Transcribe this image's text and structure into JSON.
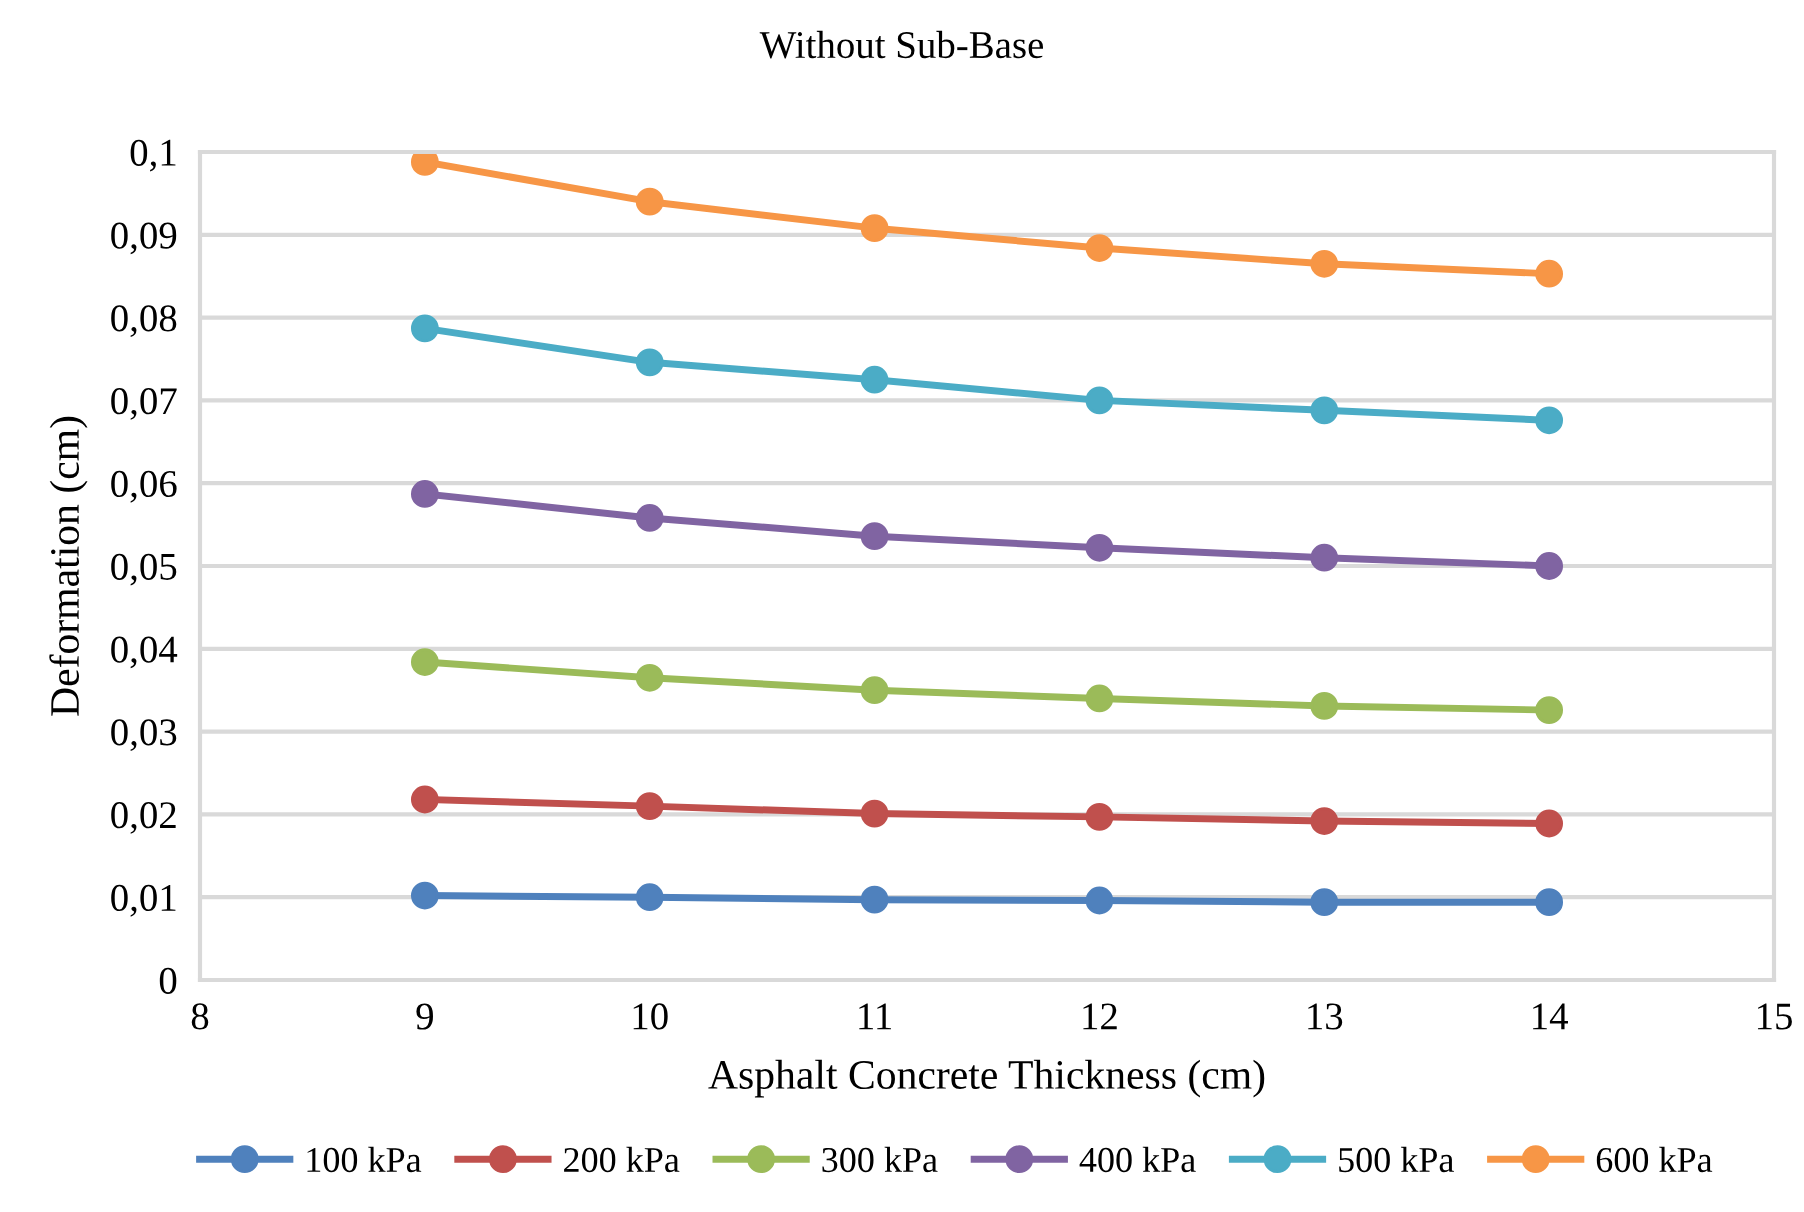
{
  "chart_data": {
    "type": "line",
    "title": "Without Sub-Base",
    "xlabel": "Asphalt Concrete Thickness (cm)",
    "ylabel": "Deformation (cm)",
    "x": [
      9,
      10,
      11,
      12,
      13,
      14
    ],
    "series": [
      {
        "name": "100 kPa",
        "color": "#4f81bd",
        "values": [
          0.0102,
          0.01,
          0.0097,
          0.0096,
          0.0094,
          0.0094
        ]
      },
      {
        "name": "200 kPa",
        "color": "#c0504d",
        "values": [
          0.0218,
          0.021,
          0.0201,
          0.0197,
          0.0192,
          0.0189
        ]
      },
      {
        "name": "300 kPa",
        "color": "#9bbb59",
        "values": [
          0.0384,
          0.0365,
          0.035,
          0.034,
          0.0331,
          0.0326
        ]
      },
      {
        "name": "400 kPa",
        "color": "#8064a2",
        "values": [
          0.0587,
          0.0558,
          0.0536,
          0.0522,
          0.051,
          0.05
        ]
      },
      {
        "name": "500 kPa",
        "color": "#4bacc6",
        "values": [
          0.0787,
          0.0746,
          0.0725,
          0.07,
          0.0688,
          0.0676
        ]
      },
      {
        "name": "600 kPa",
        "color": "#f79646",
        "values": [
          0.0988,
          0.094,
          0.0908,
          0.0884,
          0.0865,
          0.0853
        ]
      }
    ],
    "xlim": [
      8,
      15
    ],
    "xticks": [
      8,
      9,
      10,
      11,
      12,
      13,
      14,
      15
    ],
    "ylim": [
      0,
      0.1
    ],
    "yticks": [
      {
        "value": 0,
        "label": "0"
      },
      {
        "value": 0.01,
        "label": "0,01"
      },
      {
        "value": 0.02,
        "label": "0,02"
      },
      {
        "value": 0.03,
        "label": "0,03"
      },
      {
        "value": 0.04,
        "label": "0,04"
      },
      {
        "value": 0.05,
        "label": "0,05"
      },
      {
        "value": 0.06,
        "label": "0,06"
      },
      {
        "value": 0.07,
        "label": "0,07"
      },
      {
        "value": 0.08,
        "label": "0,08"
      },
      {
        "value": 0.09,
        "label": "0,09"
      },
      {
        "value": 0.1,
        "label": "0,1"
      }
    ],
    "grid": "y",
    "legend": "bottom",
    "marker": "circle",
    "line_style": "solid"
  }
}
